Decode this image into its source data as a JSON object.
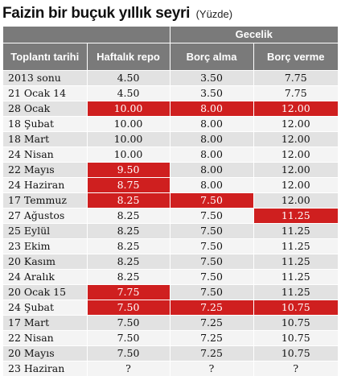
{
  "title": "Faizin bir buçuk yıllık seyri",
  "subtitle": "(Yüzde)",
  "chart_data": {
    "type": "table",
    "group_header": "Gecelik",
    "columns": [
      "Toplantı tarihi",
      "Haftalık repo",
      "Borç alma",
      "Borç verme"
    ],
    "rows": [
      {
        "date": "2013 sonu",
        "haftalik_repo": "4.50",
        "borc_alma": "3.50",
        "borc_verme": "7.75",
        "highlight": [
          false,
          false,
          false
        ]
      },
      {
        "date": "21 Ocak 14",
        "haftalik_repo": "4.50",
        "borc_alma": "3.50",
        "borc_verme": "7.75",
        "highlight": [
          false,
          false,
          false
        ]
      },
      {
        "date": "28 Ocak",
        "haftalik_repo": "10.00",
        "borc_alma": "8.00",
        "borc_verme": "12.00",
        "highlight": [
          true,
          true,
          true
        ]
      },
      {
        "date": "18 Şubat",
        "haftalik_repo": "10.00",
        "borc_alma": "8.00",
        "borc_verme": "12.00",
        "highlight": [
          false,
          false,
          false
        ]
      },
      {
        "date": "18 Mart",
        "haftalik_repo": "10.00",
        "borc_alma": "8.00",
        "borc_verme": "12.00",
        "highlight": [
          false,
          false,
          false
        ]
      },
      {
        "date": "24 Nisan",
        "haftalik_repo": "10.00",
        "borc_alma": "8.00",
        "borc_verme": "12.00",
        "highlight": [
          false,
          false,
          false
        ]
      },
      {
        "date": "22 Mayıs",
        "haftalik_repo": "9.50",
        "borc_alma": "8.00",
        "borc_verme": "12.00",
        "highlight": [
          true,
          false,
          false
        ]
      },
      {
        "date": "24 Haziran",
        "haftalik_repo": "8.75",
        "borc_alma": "8.00",
        "borc_verme": "12.00",
        "highlight": [
          true,
          false,
          false
        ]
      },
      {
        "date": "17 Temmuz",
        "haftalik_repo": "8.25",
        "borc_alma": "7.50",
        "borc_verme": "12.00",
        "highlight": [
          true,
          true,
          false
        ]
      },
      {
        "date": "27 Ağustos",
        "haftalik_repo": "8.25",
        "borc_alma": "7.50",
        "borc_verme": "11.25",
        "highlight": [
          false,
          false,
          true
        ]
      },
      {
        "date": "25 Eylül",
        "haftalik_repo": "8.25",
        "borc_alma": "7.50",
        "borc_verme": "11.25",
        "highlight": [
          false,
          false,
          false
        ]
      },
      {
        "date": "23 Ekim",
        "haftalik_repo": "8.25",
        "borc_alma": "7.50",
        "borc_verme": "11.25",
        "highlight": [
          false,
          false,
          false
        ]
      },
      {
        "date": "20 Kasım",
        "haftalik_repo": "8.25",
        "borc_alma": "7.50",
        "borc_verme": "11.25",
        "highlight": [
          false,
          false,
          false
        ]
      },
      {
        "date": "24 Aralık",
        "haftalik_repo": "8.25",
        "borc_alma": "7.50",
        "borc_verme": "11.25",
        "highlight": [
          false,
          false,
          false
        ]
      },
      {
        "date": "20 Ocak 15",
        "haftalik_repo": "7.75",
        "borc_alma": "7.50",
        "borc_verme": "11.25",
        "highlight": [
          true,
          false,
          false
        ]
      },
      {
        "date": "24 Şubat",
        "haftalik_repo": "7.50",
        "borc_alma": "7.25",
        "borc_verme": "10.75",
        "highlight": [
          true,
          true,
          true
        ]
      },
      {
        "date": "17 Mart",
        "haftalik_repo": "7.50",
        "borc_alma": "7.25",
        "borc_verme": "10.75",
        "highlight": [
          false,
          false,
          false
        ]
      },
      {
        "date": "22 Nisan",
        "haftalik_repo": "7.50",
        "borc_alma": "7.25",
        "borc_verme": "10.75",
        "highlight": [
          false,
          false,
          false
        ]
      },
      {
        "date": "20 Mayıs",
        "haftalik_repo": "7.50",
        "borc_alma": "7.25",
        "borc_verme": "10.75",
        "highlight": [
          false,
          false,
          false
        ]
      },
      {
        "date": "23 Haziran",
        "haftalik_repo": "?",
        "borc_alma": "?",
        "borc_verme": "?",
        "highlight": [
          false,
          false,
          false
        ]
      }
    ]
  },
  "colors": {
    "header_bg": "#7a7a7a",
    "highlight": "#cf1f1f",
    "row_even": "#e2e2e2",
    "row_odd": "#f4f4f4"
  }
}
